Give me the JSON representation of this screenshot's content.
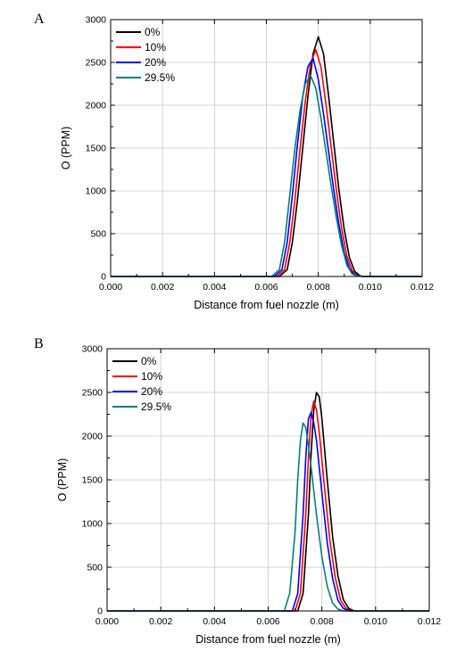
{
  "chart_data": [
    {
      "type": "line",
      "panel": "A",
      "xlabel": "Distance from fuel nozzle (m)",
      "ylabel": "O (PPM)",
      "xlim": [
        0,
        0.012
      ],
      "ylim": [
        0,
        3000
      ],
      "xticks": [
        "0.000",
        "0.002",
        "0.004",
        "0.006",
        "0.008",
        "0.010",
        "0.012"
      ],
      "yticks": [
        "0",
        "500",
        "1000",
        "1500",
        "2000",
        "2500",
        "3000"
      ],
      "grid": true,
      "legend_position": "top-left",
      "series": [
        {
          "name": "0%",
          "color": "#000000",
          "x": [
            0,
            0.0065,
            0.0068,
            0.007,
            0.0072,
            0.0074,
            0.0076,
            0.0078,
            0.008,
            0.0082,
            0.0084,
            0.0086,
            0.0088,
            0.009,
            0.0092,
            0.0094,
            0.0096,
            0.0097,
            0.012
          ],
          "y": [
            0,
            0,
            80,
            400,
            900,
            1500,
            2100,
            2600,
            2800,
            2600,
            2100,
            1550,
            1000,
            550,
            220,
            60,
            10,
            0,
            0
          ]
        },
        {
          "name": "10%",
          "color": "#ff0000",
          "x": [
            0,
            0.0064,
            0.0067,
            0.0069,
            0.0071,
            0.0073,
            0.0075,
            0.0077,
            0.0079,
            0.0081,
            0.0083,
            0.0085,
            0.0087,
            0.0089,
            0.0091,
            0.0093,
            0.0095,
            0.0097,
            0.012
          ],
          "y": [
            0,
            0,
            80,
            400,
            900,
            1500,
            2050,
            2480,
            2650,
            2450,
            2000,
            1500,
            1000,
            560,
            240,
            70,
            15,
            0,
            0
          ]
        },
        {
          "name": "20%",
          "color": "#0000ff",
          "x": [
            0,
            0.0063,
            0.0066,
            0.0068,
            0.007,
            0.0072,
            0.0074,
            0.0076,
            0.0078,
            0.008,
            0.0082,
            0.0084,
            0.0086,
            0.0088,
            0.009,
            0.0092,
            0.0094,
            0.0096,
            0.0097,
            0.012
          ],
          "y": [
            0,
            0,
            80,
            400,
            950,
            1550,
            2100,
            2450,
            2550,
            2300,
            1900,
            1450,
            1000,
            600,
            280,
            90,
            20,
            5,
            0,
            0
          ]
        },
        {
          "name": "29.5%",
          "color": "#008080",
          "x": [
            0,
            0.0062,
            0.0065,
            0.0067,
            0.0069,
            0.0071,
            0.0073,
            0.0075,
            0.0077,
            0.0079,
            0.0081,
            0.0083,
            0.0085,
            0.0087,
            0.0089,
            0.0091,
            0.0093,
            0.0095,
            0.0097,
            0.012
          ],
          "y": [
            0,
            0,
            80,
            400,
            950,
            1500,
            1950,
            2250,
            2350,
            2200,
            1850,
            1450,
            1050,
            680,
            360,
            130,
            30,
            5,
            0,
            0
          ]
        }
      ]
    },
    {
      "type": "line",
      "panel": "B",
      "xlabel": "Distance from fuel nozzle (m)",
      "ylabel": "O (PPM)",
      "xlim": [
        0,
        0.012
      ],
      "ylim": [
        0,
        3000
      ],
      "xticks": [
        "0.000",
        "0.002",
        "0.004",
        "0.006",
        "0.008",
        "0.010",
        "0.012"
      ],
      "yticks": [
        "0",
        "500",
        "1000",
        "1500",
        "2000",
        "2500",
        "3000"
      ],
      "grid": true,
      "legend_position": "top-left",
      "series": [
        {
          "name": "0%",
          "color": "#000000",
          "x": [
            0,
            0.0071,
            0.0073,
            0.0075,
            0.0076,
            0.0077,
            0.0078,
            0.0079,
            0.008,
            0.0082,
            0.0084,
            0.0086,
            0.0088,
            0.009,
            0.0092,
            0.012
          ],
          "y": [
            0,
            0,
            200,
            1100,
            1800,
            2300,
            2500,
            2450,
            2200,
            1500,
            850,
            400,
            130,
            30,
            0,
            0
          ]
        },
        {
          "name": "10%",
          "color": "#ff0000",
          "x": [
            0,
            0.007,
            0.0072,
            0.0074,
            0.0075,
            0.0076,
            0.0077,
            0.0078,
            0.0079,
            0.0081,
            0.0083,
            0.0085,
            0.0087,
            0.0089,
            0.0091,
            0.012
          ],
          "y": [
            0,
            0,
            200,
            1100,
            1750,
            2250,
            2400,
            2300,
            2050,
            1400,
            800,
            380,
            120,
            30,
            0,
            0
          ]
        },
        {
          "name": "20%",
          "color": "#0000ff",
          "x": [
            0,
            0.0069,
            0.0071,
            0.0073,
            0.0074,
            0.0075,
            0.0076,
            0.0077,
            0.0078,
            0.008,
            0.0082,
            0.0084,
            0.0086,
            0.0088,
            0.009,
            0.012
          ],
          "y": [
            0,
            0,
            200,
            1100,
            1750,
            2200,
            2270,
            2150,
            1950,
            1350,
            780,
            370,
            120,
            30,
            0,
            0
          ]
        },
        {
          "name": "29.5%",
          "color": "#008080",
          "x": [
            0,
            0.0066,
            0.0068,
            0.007,
            0.0071,
            0.0072,
            0.0073,
            0.0074,
            0.0075,
            0.0076,
            0.0078,
            0.008,
            0.0082,
            0.0084,
            0.0086,
            0.0088,
            0.012
          ],
          "y": [
            0,
            0,
            200,
            900,
            1500,
            1950,
            2150,
            2100,
            1900,
            1650,
            1100,
            620,
            280,
            90,
            20,
            0,
            0
          ]
        }
      ]
    }
  ]
}
